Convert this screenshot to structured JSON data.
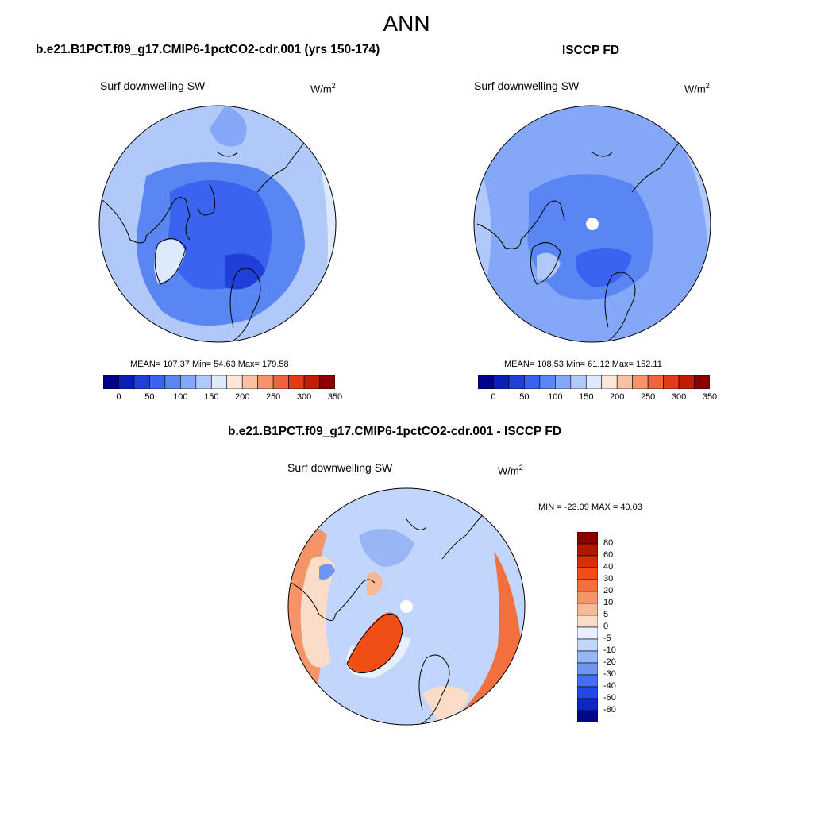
{
  "page": {
    "title": "ANN"
  },
  "panels": [
    {
      "title": "b.e21.B1PCT.f09_g17.CMIP6-1pctCO2-cdr.001 (yrs 150-174)",
      "variable": "Surf downwelling SW",
      "units_base": "W/m",
      "units_exp": "2",
      "stats": "MEAN= 107.37  Min=  54.63  Max= 179.58"
    },
    {
      "title": "ISCCP FD",
      "variable": "Surf downwelling SW",
      "units_base": "W/m",
      "units_exp": "2",
      "stats": "MEAN= 108.53  Min=  61.12  Max= 152.11"
    },
    {
      "title": "b.e21.B1PCT.f09_g17.CMIP6-1pctCO2-cdr.001 - ISCCP FD",
      "variable": "Surf downwelling SW",
      "units_base": "W/m",
      "units_exp": "2",
      "stats": "MIN = -23.09 MAX =  40.03"
    }
  ],
  "colorbar_abs": {
    "ticks": [
      "0",
      "50",
      "100",
      "150",
      "200",
      "250",
      "300",
      "350"
    ],
    "colors": [
      "#00008a",
      "#0a1fb4",
      "#1f3fd8",
      "#3a63f0",
      "#5a86f3",
      "#84a8f7",
      "#b1c9f9",
      "#dde9fc",
      "#fde7d6",
      "#f9c1a1",
      "#f5936d",
      "#ee6440",
      "#e53a17",
      "#c51a04",
      "#8a0000"
    ]
  },
  "colorbar_diff": {
    "ticks": [
      "80",
      "60",
      "40",
      "30",
      "20",
      "10",
      "5",
      "0",
      "-5",
      "-10",
      "-20",
      "-30",
      "-40",
      "-60",
      "-80"
    ],
    "colors": [
      "#8a0000",
      "#b31602",
      "#d92d05",
      "#f04e15",
      "#f2703d",
      "#f59468",
      "#f8b896",
      "#fbdcc8",
      "#e8f0fd",
      "#c2d5fa",
      "#98b6f6",
      "#6e95f2",
      "#456fee",
      "#2149e6",
      "#0c27c4",
      "#000888"
    ]
  }
}
